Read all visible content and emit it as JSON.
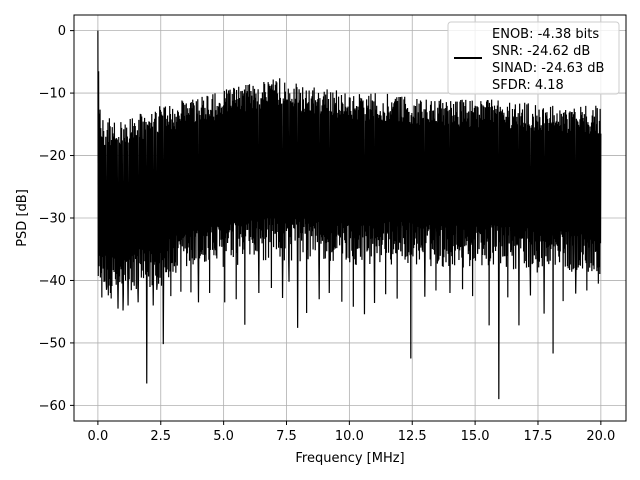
{
  "chart_data": {
    "type": "line",
    "xlabel": "Frequency [MHz]",
    "ylabel": "PSD [dB]",
    "xlim": [
      -0.95,
      21.0
    ],
    "ylim": [
      -62.5,
      2.5
    ],
    "xticks": [
      0.0,
      2.5,
      5.0,
      7.5,
      10.0,
      12.5,
      15.0,
      17.5,
      20.0
    ],
    "xtick_labels": [
      "0.0",
      "2.5",
      "5.0",
      "7.5",
      "10.0",
      "12.5",
      "15.0",
      "17.5",
      "20.0"
    ],
    "yticks": [
      0,
      -10,
      -20,
      -30,
      -40,
      -50,
      -60
    ],
    "ytick_labels": [
      "0",
      "−10",
      "−20",
      "−30",
      "−40",
      "−50",
      "−60"
    ],
    "grid": true,
    "legend_position": "top-right",
    "legend_lines": [
      "ENOB: -4.38 bits",
      "SNR: -24.62 dB",
      "SINAD: -24.63 dB",
      "SFDR: 4.18"
    ],
    "series_color": "#000000",
    "x_range": [
      0.0,
      20.0
    ],
    "envelope": {
      "x": [
        0.0,
        0.02,
        0.05,
        0.1,
        0.2,
        0.5,
        1.0,
        1.5,
        2.0,
        2.5,
        3.0,
        3.5,
        4.0,
        4.5,
        5.0,
        5.5,
        6.0,
        6.5,
        7.0,
        7.5,
        8.0,
        8.5,
        9.0,
        9.5,
        10.0,
        10.5,
        11.0,
        11.5,
        12.0,
        12.5,
        13.0,
        13.5,
        14.0,
        14.5,
        15.0,
        15.5,
        16.0,
        16.5,
        17.0,
        17.5,
        18.0,
        18.5,
        19.0,
        19.5,
        20.0
      ],
      "upper": [
        0.0,
        -5,
        -10,
        -13,
        -14,
        -14,
        -14,
        -13.5,
        -13,
        -12,
        -11.5,
        -11,
        -10.5,
        -10,
        -9.5,
        -9,
        -8.5,
        -8,
        -7.5,
        -7.5,
        -8.5,
        -9,
        -9,
        -9.5,
        -9.5,
        -10,
        -10,
        -10,
        -10.5,
        -10.5,
        -11,
        -11,
        -11,
        -11,
        -11,
        -11,
        -11,
        -11.5,
        -11.5,
        -12,
        -12,
        -12,
        -12,
        -12,
        -12
      ],
      "lower": [
        -38,
        -40,
        -42,
        -43,
        -43,
        -43,
        -43,
        -42,
        -42,
        -41,
        -40,
        -39,
        -38.5,
        -38,
        -38,
        -37.5,
        -37.5,
        -37,
        -37,
        -37,
        -37,
        -37,
        -37.5,
        -37.5,
        -37.5,
        -37.5,
        -37.5,
        -37.5,
        -37.5,
        -37.5,
        -38,
        -38,
        -38,
        -38,
        -38,
        -38,
        -38,
        -38.5,
        -38.5,
        -39,
        -39,
        -39,
        -39,
        -39,
        -39
      ]
    },
    "dips": [
      {
        "x": 0.35,
        "y": -41.5
      },
      {
        "x": 0.5,
        "y": -42
      },
      {
        "x": 0.8,
        "y": -44.5
      },
      {
        "x": 1.0,
        "y": -44.8
      },
      {
        "x": 1.2,
        "y": -44
      },
      {
        "x": 1.6,
        "y": -43.5
      },
      {
        "x": 1.95,
        "y": -56.5
      },
      {
        "x": 2.2,
        "y": -44
      },
      {
        "x": 2.35,
        "y": -41.5
      },
      {
        "x": 2.6,
        "y": -50.2
      },
      {
        "x": 2.9,
        "y": -42.5
      },
      {
        "x": 3.3,
        "y": -41.8
      },
      {
        "x": 3.7,
        "y": -41.9
      },
      {
        "x": 4.0,
        "y": -43.5
      },
      {
        "x": 4.45,
        "y": -42
      },
      {
        "x": 5.05,
        "y": -43.5
      },
      {
        "x": 5.5,
        "y": -43
      },
      {
        "x": 5.85,
        "y": -47.1
      },
      {
        "x": 6.4,
        "y": -42
      },
      {
        "x": 6.9,
        "y": -41.2
      },
      {
        "x": 7.35,
        "y": -42.8
      },
      {
        "x": 7.6,
        "y": -40.2
      },
      {
        "x": 7.95,
        "y": -47.6
      },
      {
        "x": 8.3,
        "y": -45.2
      },
      {
        "x": 8.8,
        "y": -43
      },
      {
        "x": 9.2,
        "y": -42
      },
      {
        "x": 9.7,
        "y": -43.4
      },
      {
        "x": 10.15,
        "y": -44.2
      },
      {
        "x": 10.6,
        "y": -45.4
      },
      {
        "x": 11.0,
        "y": -43.6
      },
      {
        "x": 11.45,
        "y": -42.2
      },
      {
        "x": 11.9,
        "y": -42.9
      },
      {
        "x": 12.45,
        "y": -52.5
      },
      {
        "x": 13.0,
        "y": -42.6
      },
      {
        "x": 13.45,
        "y": -41.6
      },
      {
        "x": 14.0,
        "y": -42
      },
      {
        "x": 14.5,
        "y": -41.4
      },
      {
        "x": 14.9,
        "y": -42.5
      },
      {
        "x": 15.55,
        "y": -47.2
      },
      {
        "x": 15.95,
        "y": -59.0
      },
      {
        "x": 16.3,
        "y": -42.7
      },
      {
        "x": 16.75,
        "y": -47.2
      },
      {
        "x": 17.2,
        "y": -42.4
      },
      {
        "x": 17.75,
        "y": -45.3
      },
      {
        "x": 18.1,
        "y": -51.7
      },
      {
        "x": 18.5,
        "y": -43.3
      },
      {
        "x": 19.0,
        "y": -42.1
      },
      {
        "x": 19.45,
        "y": -41.6
      },
      {
        "x": 19.9,
        "y": -40.5
      }
    ]
  }
}
